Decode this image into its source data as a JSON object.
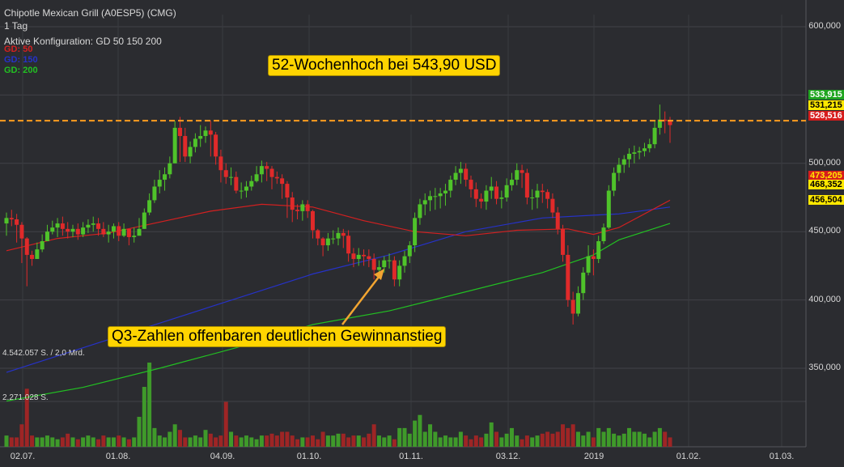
{
  "header": {
    "title": "Chipotle Mexican Grill (A0ESP5) (CMG)",
    "interval": "1 Tag",
    "config": "Aktive Konfiguration: GD 50 150 200"
  },
  "legend": [
    {
      "label": "GD: 50",
      "color": "#d42020"
    },
    {
      "label": "GD: 150",
      "color": "#2632c8"
    },
    {
      "label": "GD: 200",
      "color": "#22c022"
    }
  ],
  "volume_labels": {
    "top": "4.542.057 S. / 2,0 Mrd.",
    "mid": "2.271.028 S."
  },
  "annotations": {
    "high": "52-Wochenhoch bei 543,90 USD",
    "q3": "Q3-Zahlen offenbaren deutlichen Gewinnanstieg"
  },
  "price_labels": [
    {
      "text": "533,915",
      "bg": "#1fa51f",
      "fg": "#ffffff"
    },
    {
      "text": "531,215",
      "bg": "#ffe800",
      "fg": "#000000"
    },
    {
      "text": "528,516",
      "bg": "#d61c1c",
      "fg": "#ffffff"
    },
    {
      "text": "473,205",
      "bg": "#d61c1c",
      "fg": "#ffe800"
    },
    {
      "text": "468,352",
      "bg": "#ffe800",
      "fg": "#000000"
    },
    {
      "text": "456,504",
      "bg": "#ffe800",
      "fg": "#000000"
    }
  ],
  "chart_data": {
    "type": "candlestick",
    "title": "Chipotle Mexican Grill (A0ESP5) (CMG)",
    "y_tick_labels": [
      "600,000",
      "550,000",
      "500,000",
      "450,000",
      "400,000",
      "350,000"
    ],
    "x_tick_labels": [
      "02.07.",
      "01.08.",
      "04.09.",
      "01.10.",
      "01.11.",
      "03.12.",
      "2019",
      "01.02.",
      "01.03."
    ],
    "close": [
      460,
      459,
      455,
      445,
      433,
      430,
      437,
      443,
      450,
      453,
      456,
      452,
      450,
      452,
      448,
      453,
      455,
      456,
      452,
      448,
      450,
      454,
      447,
      452,
      446,
      447,
      452,
      464,
      473,
      483,
      488,
      492,
      500,
      526,
      520,
      505,
      512,
      518,
      520,
      524,
      521,
      505,
      495,
      490,
      490,
      480,
      480,
      483,
      487,
      492,
      498,
      496,
      490,
      489,
      485,
      475,
      466,
      465,
      470,
      465,
      451,
      445,
      440,
      445,
      445,
      449,
      447,
      434,
      430,
      433,
      432,
      430,
      422,
      424,
      429,
      429,
      415,
      425,
      432,
      440,
      460,
      470,
      473,
      476,
      476,
      478,
      480,
      488,
      493,
      496,
      488,
      481,
      474,
      472,
      480,
      483,
      474,
      475,
      484,
      488,
      495,
      493,
      475,
      475,
      480,
      479,
      474,
      464,
      452,
      433,
      400,
      390,
      405,
      420,
      432,
      430,
      443,
      453,
      480,
      493,
      499,
      503,
      507,
      508,
      509,
      511,
      514,
      526,
      532,
      531,
      528
    ],
    "high": [
      464,
      466,
      463,
      457,
      446,
      436,
      442,
      448,
      455,
      458,
      460,
      461,
      457,
      455,
      456,
      457,
      459,
      461,
      460,
      457,
      455,
      456,
      457,
      456,
      452,
      453,
      460,
      467,
      478,
      488,
      495,
      497,
      505,
      531,
      534,
      526,
      516,
      522,
      528,
      527,
      531,
      523,
      510,
      500,
      497,
      494,
      486,
      487,
      491,
      498,
      502,
      501,
      498,
      494,
      492,
      487,
      479,
      470,
      473,
      473,
      466,
      452,
      446,
      449,
      451,
      453,
      452,
      451,
      438,
      438,
      437,
      437,
      434,
      429,
      432,
      434,
      432,
      429,
      436,
      443,
      464,
      474,
      478,
      480,
      482,
      482,
      485,
      491,
      498,
      501,
      500,
      491,
      486,
      478,
      484,
      490,
      487,
      480,
      489,
      493,
      500,
      499,
      496,
      481,
      485,
      485,
      481,
      478,
      468,
      455,
      440,
      406,
      410,
      424,
      440,
      437,
      447,
      456,
      484,
      497,
      504,
      506,
      511,
      513,
      512,
      515,
      518,
      531,
      543,
      538,
      534
    ],
    "low": [
      447,
      454,
      442,
      427,
      410,
      425,
      432,
      435,
      445,
      448,
      446,
      447,
      445,
      446,
      444,
      446,
      449,
      450,
      447,
      446,
      442,
      445,
      443,
      446,
      440,
      442,
      448,
      452,
      462,
      471,
      478,
      480,
      489,
      502,
      501,
      501,
      500,
      508,
      512,
      515,
      505,
      499,
      486,
      485,
      484,
      478,
      474,
      475,
      480,
      486,
      486,
      487,
      481,
      485,
      474,
      460,
      457,
      459,
      458,
      460,
      445,
      440,
      432,
      436,
      441,
      440,
      438,
      428,
      424,
      425,
      425,
      424,
      415,
      416,
      420,
      423,
      410,
      410,
      420,
      427,
      435,
      455,
      462,
      465,
      466,
      467,
      469,
      475,
      484,
      485,
      483,
      475,
      468,
      467,
      466,
      474,
      470,
      467,
      472,
      480,
      484,
      482,
      470,
      466,
      467,
      471,
      467,
      460,
      448,
      428,
      395,
      382,
      388,
      400,
      418,
      418,
      427,
      441,
      452,
      476,
      487,
      493,
      497,
      500,
      503,
      505,
      508,
      511,
      521,
      522,
      515
    ],
    "ma_50": {
      "x_index": [
        0,
        10,
        20,
        30,
        40,
        50,
        60,
        70,
        80,
        90,
        100,
        110,
        115,
        120,
        130
      ],
      "values": [
        436,
        445,
        449,
        457,
        465,
        470,
        468,
        458,
        450,
        447,
        451,
        452,
        448,
        453,
        473
      ]
    },
    "ma_150": {
      "x_index": [
        0,
        15,
        30,
        45,
        60,
        75,
        90,
        105,
        115,
        120,
        130
      ],
      "values": [
        347,
        365,
        383,
        401,
        419,
        433,
        450,
        460,
        462,
        463,
        468
      ]
    },
    "ma_200": {
      "x_index": [
        0,
        15,
        30,
        45,
        60,
        75,
        90,
        105,
        115,
        120,
        130
      ],
      "values": [
        326,
        336,
        350,
        365,
        382,
        392,
        406,
        420,
        433,
        444,
        456
      ]
    },
    "volume_millions": [
      0.6,
      0.5,
      0.5,
      1.2,
      3.1,
      0.6,
      0.5,
      0.5,
      0.6,
      0.5,
      0.4,
      0.5,
      0.7,
      0.5,
      0.4,
      0.5,
      0.6,
      0.5,
      0.4,
      0.6,
      0.5,
      0.5,
      0.6,
      0.5,
      0.4,
      0.5,
      1.6,
      3.2,
      4.5,
      1.0,
      0.6,
      0.5,
      0.8,
      1.2,
      0.9,
      0.5,
      0.5,
      0.6,
      0.5,
      0.9,
      0.7,
      0.5,
      0.6,
      2.4,
      0.8,
      0.6,
      0.5,
      0.6,
      0.5,
      0.4,
      0.6,
      0.6,
      0.7,
      0.6,
      0.8,
      0.8,
      0.6,
      0.4,
      0.5,
      0.5,
      0.6,
      0.4,
      0.8,
      0.6,
      0.6,
      0.7,
      0.7,
      0.5,
      0.6,
      0.6,
      0.5,
      0.7,
      1.2,
      0.6,
      0.5,
      0.6,
      0.4,
      1.0,
      1.0,
      0.7,
      1.4,
      1.7,
      0.8,
      1.2,
      0.8,
      0.5,
      0.6,
      0.5,
      0.5,
      0.8,
      0.6,
      0.4,
      0.6,
      0.5,
      0.7,
      1.3,
      0.8,
      0.5,
      0.7,
      1.0,
      0.6,
      0.4,
      0.6,
      0.5,
      0.6,
      0.7,
      0.8,
      0.7,
      0.8,
      1.2,
      1.0,
      1.2,
      0.8,
      0.6,
      0.8,
      0.5,
      1.0,
      0.8,
      1.0,
      0.7,
      0.6,
      0.7,
      1.0,
      0.8,
      0.8,
      0.7,
      0.5,
      0.8,
      1.0,
      0.8,
      0.5
    ],
    "reference_line": {
      "value": 531.215,
      "style": "dashed",
      "color": "#ff9d1e"
    },
    "y_range": [
      330,
      610
    ],
    "grid": true
  }
}
